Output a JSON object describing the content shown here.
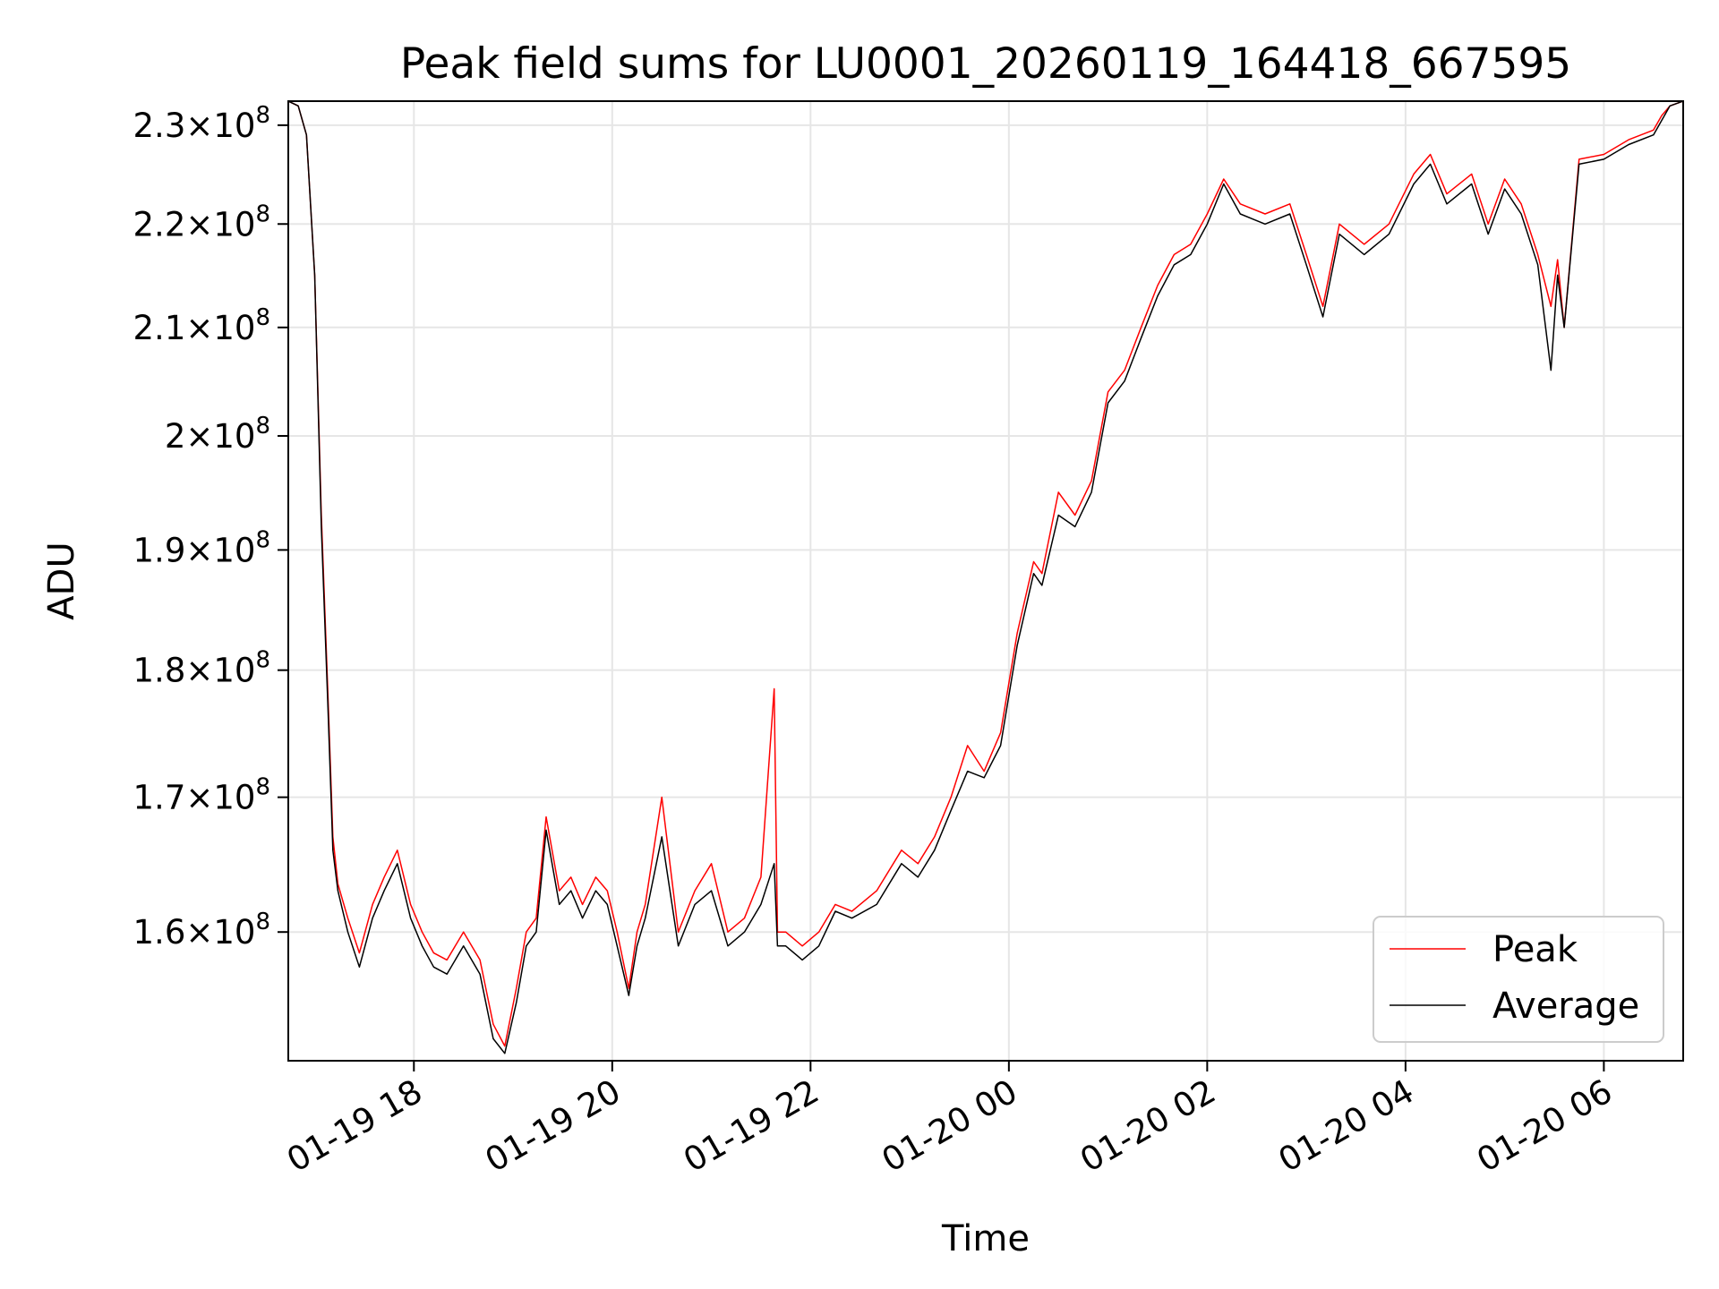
{
  "chart_data": {
    "type": "line",
    "title": "Peak field sums for LU0001_20260119_164418_667595",
    "xlabel": "Time",
    "ylabel": "ADU",
    "xlim": [
      "2026-01-19 16:44",
      "2026-01-20 06:48"
    ],
    "ylim": [
      151000000.0,
      232500000.0
    ],
    "yscale": "log",
    "grid": true,
    "legend_position": "bottom-right",
    "x_ticks": [
      "2026-01-19 18:00",
      "2026-01-19 20:00",
      "2026-01-19 22:00",
      "2026-01-20 00:00",
      "2026-01-20 02:00",
      "2026-01-20 04:00",
      "2026-01-20 06:00"
    ],
    "x_tick_labels": [
      "01-19 18",
      "01-19 20",
      "01-19 22",
      "01-20 00",
      "01-20 02",
      "01-20 04",
      "01-20 06"
    ],
    "y_ticks": [
      {
        "value": 160000000,
        "mantissa": "1.6"
      },
      {
        "value": 170000000,
        "mantissa": "1.7"
      },
      {
        "value": 180000000,
        "mantissa": "1.8"
      },
      {
        "value": 190000000,
        "mantissa": "1.9"
      },
      {
        "value": 200000000,
        "mantissa": "2"
      },
      {
        "value": 210000000,
        "mantissa": "2.1"
      },
      {
        "value": 220000000,
        "mantissa": "2.2"
      },
      {
        "value": 230000000,
        "mantissa": "2.3"
      }
    ],
    "y_tick_suffix": {
      "times": "×",
      "base": "10",
      "exponent": "8"
    },
    "series": [
      {
        "name": "Peak",
        "color": "#ff0000",
        "x": [
          "2026-01-19 16:44",
          "2026-01-19 16:50",
          "2026-01-19 16:55",
          "2026-01-19 17:00",
          "2026-01-19 17:04",
          "2026-01-19 17:08",
          "2026-01-19 17:11",
          "2026-01-19 17:14",
          "2026-01-19 17:20",
          "2026-01-19 17:27",
          "2026-01-19 17:35",
          "2026-01-19 17:42",
          "2026-01-19 17:50",
          "2026-01-19 17:58",
          "2026-01-19 18:05",
          "2026-01-19 18:12",
          "2026-01-19 18:20",
          "2026-01-19 18:30",
          "2026-01-19 18:40",
          "2026-01-19 18:48",
          "2026-01-19 18:55",
          "2026-01-19 19:02",
          "2026-01-19 19:08",
          "2026-01-19 19:14",
          "2026-01-19 19:20",
          "2026-01-19 19:28",
          "2026-01-19 19:35",
          "2026-01-19 19:42",
          "2026-01-19 19:50",
          "2026-01-19 19:57",
          "2026-01-19 20:03",
          "2026-01-19 20:10",
          "2026-01-19 20:15",
          "2026-01-19 20:20",
          "2026-01-19 20:30",
          "2026-01-19 20:40",
          "2026-01-19 20:50",
          "2026-01-19 21:00",
          "2026-01-19 21:10",
          "2026-01-19 21:20",
          "2026-01-19 21:30",
          "2026-01-19 21:38",
          "2026-01-19 21:40",
          "2026-01-19 21:45",
          "2026-01-19 21:55",
          "2026-01-19 22:05",
          "2026-01-19 22:15",
          "2026-01-19 22:25",
          "2026-01-19 22:40",
          "2026-01-19 22:55",
          "2026-01-19 23:05",
          "2026-01-19 23:15",
          "2026-01-19 23:25",
          "2026-01-19 23:35",
          "2026-01-19 23:45",
          "2026-01-19 23:55",
          "2026-01-20 00:05",
          "2026-01-20 00:15",
          "2026-01-20 00:20",
          "2026-01-20 00:30",
          "2026-01-20 00:40",
          "2026-01-20 00:50",
          "2026-01-20 01:00",
          "2026-01-20 01:10",
          "2026-01-20 01:20",
          "2026-01-20 01:30",
          "2026-01-20 01:40",
          "2026-01-20 01:50",
          "2026-01-20 02:00",
          "2026-01-20 02:10",
          "2026-01-20 02:20",
          "2026-01-20 02:35",
          "2026-01-20 02:50",
          "2026-01-20 03:00",
          "2026-01-20 03:10",
          "2026-01-20 03:20",
          "2026-01-20 03:35",
          "2026-01-20 03:50",
          "2026-01-20 04:05",
          "2026-01-20 04:15",
          "2026-01-20 04:25",
          "2026-01-20 04:40",
          "2026-01-20 04:50",
          "2026-01-20 05:00",
          "2026-01-20 05:10",
          "2026-01-20 05:20",
          "2026-01-20 05:28",
          "2026-01-20 05:32",
          "2026-01-20 05:36",
          "2026-01-20 05:45",
          "2026-01-20 06:00",
          "2026-01-20 06:15",
          "2026-01-20 06:30",
          "2026-01-20 06:35",
          "2026-01-20 06:40",
          "2026-01-20 06:48"
        ],
        "y": [
          232500000.0,
          232000000.0,
          229000000.0,
          215000000.0,
          193000000.0,
          178000000.0,
          167000000.0,
          163500000.0,
          161000000.0,
          158500000.0,
          162000000.0,
          164000000.0,
          166000000.0,
          162000000.0,
          160000000.0,
          158500000.0,
          158000000.0,
          160000000.0,
          158000000.0,
          153500000.0,
          152000000.0,
          156000000.0,
          160000000.0,
          161000000.0,
          168500000.0,
          163000000.0,
          164000000.0,
          162000000.0,
          164000000.0,
          163000000.0,
          160000000.0,
          156000000.0,
          160000000.0,
          162000000.0,
          170000000.0,
          160000000.0,
          163000000.0,
          165000000.0,
          160000000.0,
          161000000.0,
          164000000.0,
          178500000.0,
          160000000.0,
          160000000.0,
          159000000.0,
          160000000.0,
          162000000.0,
          161500000.0,
          163000000.0,
          166000000.0,
          165000000.0,
          167000000.0,
          170000000.0,
          174000000.0,
          172000000.0,
          175000000.0,
          183000000.0,
          189000000.0,
          188000000.0,
          195000000.0,
          193000000.0,
          196000000.0,
          204000000.0,
          206000000.0,
          210000000.0,
          214000000.0,
          217000000.0,
          218000000.0,
          221000000.0,
          224500000.0,
          222000000.0,
          221000000.0,
          222000000.0,
          217000000.0,
          212000000.0,
          220000000.0,
          218000000.0,
          220000000.0,
          225000000.0,
          227000000.0,
          223000000.0,
          225000000.0,
          220000000.0,
          224500000.0,
          222000000.0,
          217000000.0,
          212000000.0,
          216500000.0,
          210000000.0,
          226500000.0,
          227000000.0,
          228500000.0,
          229500000.0,
          231000000.0,
          232000000.0,
          232500000.0
        ]
      },
      {
        "name": "Average",
        "color": "#000000",
        "x": [
          "2026-01-19 16:44",
          "2026-01-19 16:50",
          "2026-01-19 16:55",
          "2026-01-19 17:00",
          "2026-01-19 17:04",
          "2026-01-19 17:08",
          "2026-01-19 17:11",
          "2026-01-19 17:14",
          "2026-01-19 17:20",
          "2026-01-19 17:27",
          "2026-01-19 17:35",
          "2026-01-19 17:42",
          "2026-01-19 17:50",
          "2026-01-19 17:58",
          "2026-01-19 18:05",
          "2026-01-19 18:12",
          "2026-01-19 18:20",
          "2026-01-19 18:30",
          "2026-01-19 18:40",
          "2026-01-19 18:48",
          "2026-01-19 18:55",
          "2026-01-19 19:02",
          "2026-01-19 19:08",
          "2026-01-19 19:14",
          "2026-01-19 19:20",
          "2026-01-19 19:28",
          "2026-01-19 19:35",
          "2026-01-19 19:42",
          "2026-01-19 19:50",
          "2026-01-19 19:57",
          "2026-01-19 20:03",
          "2026-01-19 20:10",
          "2026-01-19 20:15",
          "2026-01-19 20:20",
          "2026-01-19 20:30",
          "2026-01-19 20:40",
          "2026-01-19 20:50",
          "2026-01-19 21:00",
          "2026-01-19 21:10",
          "2026-01-19 21:20",
          "2026-01-19 21:30",
          "2026-01-19 21:38",
          "2026-01-19 21:40",
          "2026-01-19 21:45",
          "2026-01-19 21:55",
          "2026-01-19 22:05",
          "2026-01-19 22:15",
          "2026-01-19 22:25",
          "2026-01-19 22:40",
          "2026-01-19 22:55",
          "2026-01-19 23:05",
          "2026-01-19 23:15",
          "2026-01-19 23:25",
          "2026-01-19 23:35",
          "2026-01-19 23:45",
          "2026-01-19 23:55",
          "2026-01-20 00:05",
          "2026-01-20 00:15",
          "2026-01-20 00:20",
          "2026-01-20 00:30",
          "2026-01-20 00:40",
          "2026-01-20 00:50",
          "2026-01-20 01:00",
          "2026-01-20 01:10",
          "2026-01-20 01:20",
          "2026-01-20 01:30",
          "2026-01-20 01:40",
          "2026-01-20 01:50",
          "2026-01-20 02:00",
          "2026-01-20 02:10",
          "2026-01-20 02:20",
          "2026-01-20 02:35",
          "2026-01-20 02:50",
          "2026-01-20 03:00",
          "2026-01-20 03:10",
          "2026-01-20 03:20",
          "2026-01-20 03:35",
          "2026-01-20 03:50",
          "2026-01-20 04:05",
          "2026-01-20 04:15",
          "2026-01-20 04:25",
          "2026-01-20 04:40",
          "2026-01-20 04:50",
          "2026-01-20 05:00",
          "2026-01-20 05:10",
          "2026-01-20 05:20",
          "2026-01-20 05:28",
          "2026-01-20 05:32",
          "2026-01-20 05:36",
          "2026-01-20 05:45",
          "2026-01-20 06:00",
          "2026-01-20 06:15",
          "2026-01-20 06:30",
          "2026-01-20 06:35",
          "2026-01-20 06:40",
          "2026-01-20 06:48"
        ],
        "y": [
          232500000.0,
          232000000.0,
          229000000.0,
          215000000.0,
          192000000.0,
          177000000.0,
          166000000.0,
          163000000.0,
          160000000.0,
          157500000.0,
          161000000.0,
          163000000.0,
          165000000.0,
          161000000.0,
          159000000.0,
          157500000.0,
          157000000.0,
          159000000.0,
          157000000.0,
          152500000.0,
          151500000.0,
          155000000.0,
          159000000.0,
          160000000.0,
          167500000.0,
          162000000.0,
          163000000.0,
          161000000.0,
          163000000.0,
          162000000.0,
          159000000.0,
          155500000.0,
          159000000.0,
          161000000.0,
          167000000.0,
          159000000.0,
          162000000.0,
          163000000.0,
          159000000.0,
          160000000.0,
          162000000.0,
          165000000.0,
          159000000.0,
          159000000.0,
          158000000.0,
          159000000.0,
          161500000.0,
          161000000.0,
          162000000.0,
          165000000.0,
          164000000.0,
          166000000.0,
          169000000.0,
          172000000.0,
          171500000.0,
          174000000.0,
          182000000.0,
          188000000.0,
          187000000.0,
          193000000.0,
          192000000.0,
          195000000.0,
          203000000.0,
          205000000.0,
          209000000.0,
          213000000.0,
          216000000.0,
          217000000.0,
          220000000.0,
          224000000.0,
          221000000.0,
          220000000.0,
          221000000.0,
          216000000.0,
          211000000.0,
          219000000.0,
          217000000.0,
          219000000.0,
          224000000.0,
          226000000.0,
          222000000.0,
          224000000.0,
          219000000.0,
          223500000.0,
          221000000.0,
          216000000.0,
          206000000.0,
          215000000.0,
          210000000.0,
          226000000.0,
          226500000.0,
          228000000.0,
          229000000.0,
          230500000.0,
          232000000.0,
          232500000.0
        ]
      }
    ]
  }
}
